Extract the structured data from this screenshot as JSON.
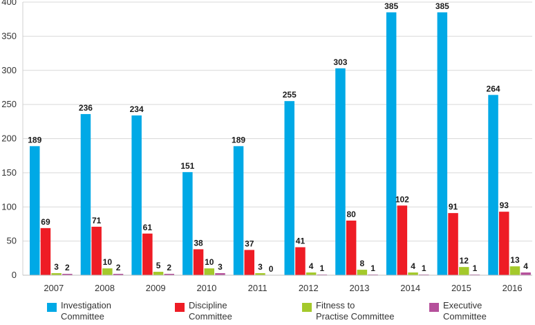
{
  "chart_data": {
    "type": "bar",
    "categories": [
      "2007",
      "2008",
      "2009",
      "2010",
      "2011",
      "2012",
      "2013",
      "2014",
      "2015",
      "2016"
    ],
    "series": [
      {
        "name": "Investigation Committee",
        "color": "#00a9e6",
        "values": [
          189,
          236,
          234,
          151,
          189,
          255,
          303,
          385,
          385,
          264
        ]
      },
      {
        "name": "Discipline Committee",
        "color": "#ee1c25",
        "values": [
          69,
          71,
          61,
          38,
          37,
          41,
          80,
          102,
          91,
          93
        ]
      },
      {
        "name": "Fitness to Practise Committee",
        "color": "#a4c92b",
        "values": [
          3,
          10,
          5,
          10,
          3,
          4,
          8,
          4,
          12,
          13
        ]
      },
      {
        "name": "Executive Committee",
        "color": "#b5509b",
        "values": [
          2,
          2,
          2,
          3,
          0,
          1,
          1,
          1,
          1,
          4
        ]
      }
    ],
    "legend": [
      {
        "line1": "Investigation",
        "line2": "Committee"
      },
      {
        "line1": "Discipline",
        "line2": "Committee"
      },
      {
        "line1": "Fitness to",
        "line2": "Practise Committee"
      },
      {
        "line1": "Executive",
        "line2": "Committee"
      }
    ],
    "yticks": [
      "0",
      "50",
      "100",
      "150",
      "200",
      "250",
      "300",
      "350",
      "400"
    ],
    "ylim": [
      0,
      400
    ],
    "grid": true,
    "legend_position": "bottom"
  }
}
